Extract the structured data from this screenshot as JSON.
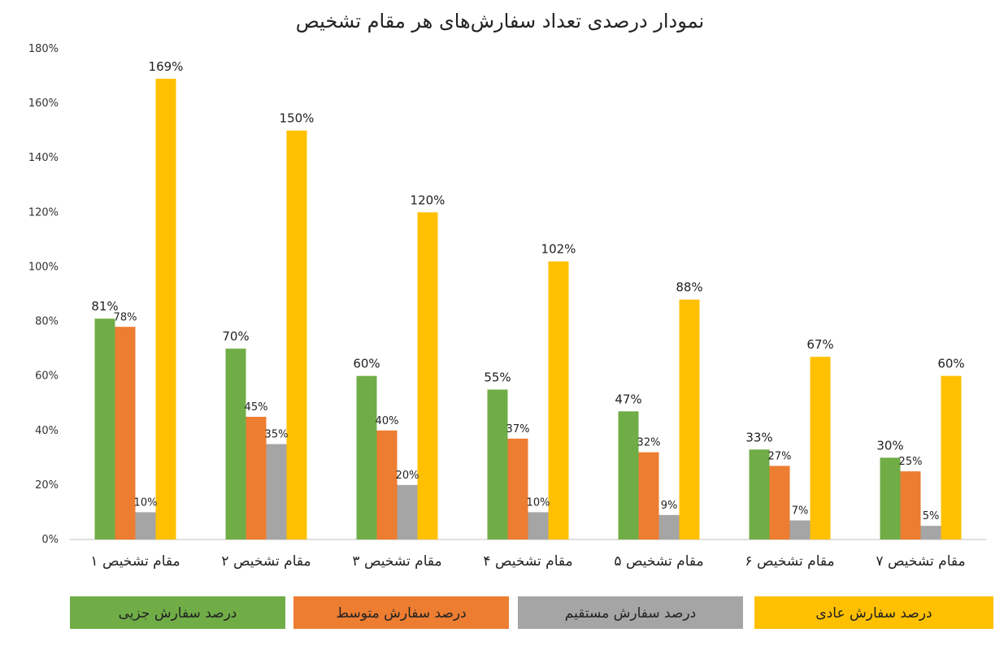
{
  "chart_data": {
    "type": "bar",
    "title": "نمودار درصدی تعداد سفارش‌های هر مقام تشخیص",
    "categories": [
      "مقام تشخیص ۱",
      "مقام تشخیص ۲",
      "مقام تشخیص ۳",
      "مقام تشخیص ۴",
      "مقام تشخیص ۵",
      "مقام تشخیص ۶",
      "مقام تشخیص ۷"
    ],
    "series": [
      {
        "name": "درصد سفارش جزیی",
        "color": "#70ad47",
        "values": [
          81,
          70,
          60,
          55,
          47,
          33,
          30
        ]
      },
      {
        "name": "درصد سفارش متوسط",
        "color": "#ed7d31",
        "values": [
          78,
          45,
          40,
          37,
          32,
          27,
          25
        ]
      },
      {
        "name": "درصد سفارش مستقیم",
        "color": "#a5a5a5",
        "values": [
          10,
          35,
          20,
          10,
          9,
          7,
          5
        ]
      },
      {
        "name": "درصد سفارش عادی",
        "color": "#ffc000",
        "values": [
          169,
          150,
          120,
          102,
          88,
          67,
          60
        ]
      }
    ],
    "yticks": [
      "0%",
      "20%",
      "40%",
      "60%",
      "80%",
      "100%",
      "120%",
      "140%",
      "160%",
      "180%"
    ],
    "ylim": [
      0,
      180
    ],
    "value_suffix": "%",
    "grid": false,
    "legend_position": "bottom"
  }
}
